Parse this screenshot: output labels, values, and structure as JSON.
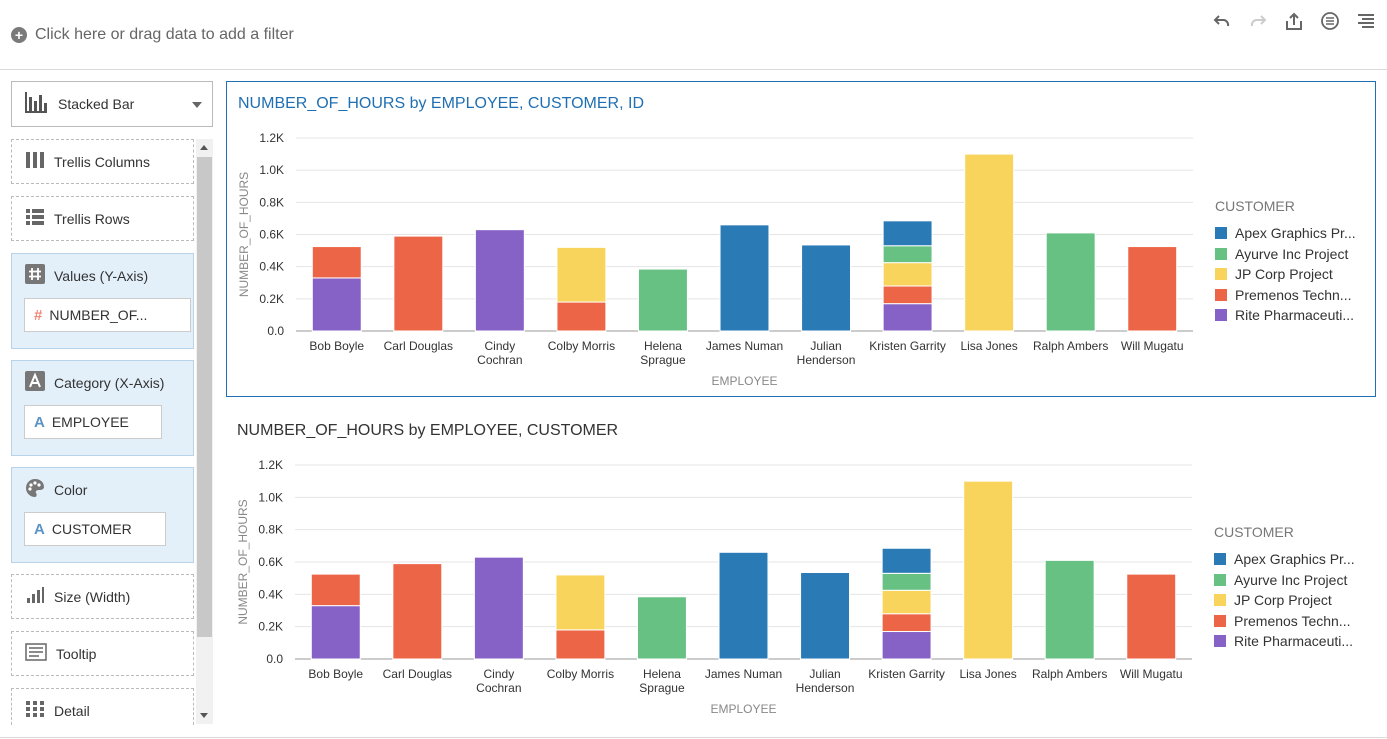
{
  "filter_bar": {
    "add_filter_text": "Click here or drag data to add a filter"
  },
  "toolbar": {
    "icons": [
      "undo-icon",
      "redo-icon",
      "share-icon",
      "properties-icon",
      "menu-icon"
    ]
  },
  "panel": {
    "viz_type": "Stacked Bar",
    "wells": {
      "trellis_columns": "Trellis Columns",
      "trellis_rows": "Trellis Rows",
      "values": {
        "label": "Values (Y-Axis)",
        "item": "NUMBER_OF..."
      },
      "category": {
        "label": "Category (X-Axis)",
        "item": "EMPLOYEE"
      },
      "color": {
        "label": "Color",
        "item": "CUSTOMER"
      },
      "size": "Size (Width)",
      "tooltip": "Tooltip",
      "detail": "Detail"
    }
  },
  "colors": {
    "Apex Graphics Pr...": "#2a7ab5",
    "Ayurve Inc Project": "#66c183",
    "JP Corp Project": "#f9d45c",
    "Premenos Techn...": "#ed6547",
    "Rite Pharmaceuti...": "#8661c6"
  },
  "chart_data": [
    {
      "type": "bar",
      "stacked": true,
      "title": "NUMBER_OF_HOURS by EMPLOYEE, CUSTOMER, ID",
      "xlabel": "EMPLOYEE",
      "ylabel": "NUMBER_OF_HOURS",
      "ylim": [
        0,
        1200
      ],
      "yticks": [
        "0.0",
        "0.2K",
        "0.4K",
        "0.6K",
        "0.8K",
        "1.0K",
        "1.2K"
      ],
      "grid": true,
      "legend_position": "right",
      "legend_title": "CUSTOMER",
      "categories": [
        "Bob Boyle",
        "Carl Douglas",
        "Cindy Cochran",
        "Colby Morris",
        "Helena Sprague",
        "James Numan",
        "Julian Henderson",
        "Kristen Garrity",
        "Lisa Jones",
        "Ralph Ambers",
        "Will Mugatu"
      ],
      "category_lines": [
        [
          "Bob Boyle"
        ],
        [
          "Carl Douglas"
        ],
        [
          "Cindy",
          "Cochran"
        ],
        [
          "Colby Morris"
        ],
        [
          "Helena",
          "Sprague"
        ],
        [
          "James Numan"
        ],
        [
          "Julian",
          "Henderson"
        ],
        [
          "Kristen Garrity"
        ],
        [
          "Lisa Jones"
        ],
        [
          "Ralph Ambers"
        ],
        [
          "Will Mugatu"
        ]
      ],
      "series": [
        {
          "name": "Rite Pharmaceuti...",
          "values": [
            330,
            0,
            630,
            0,
            0,
            0,
            0,
            170,
            0,
            0,
            0
          ]
        },
        {
          "name": "Premenos Techn...",
          "values": [
            195,
            590,
            0,
            180,
            0,
            0,
            0,
            110,
            0,
            0,
            525
          ]
        },
        {
          "name": "JP Corp Project",
          "values": [
            0,
            0,
            0,
            340,
            0,
            0,
            0,
            145,
            1100,
            0,
            0
          ]
        },
        {
          "name": "Ayurve Inc Project",
          "values": [
            0,
            0,
            0,
            0,
            385,
            0,
            0,
            105,
            0,
            610,
            0
          ]
        },
        {
          "name": "Apex Graphics Pr...",
          "values": [
            0,
            0,
            0,
            0,
            0,
            660,
            535,
            155,
            0,
            0,
            0
          ]
        }
      ]
    },
    {
      "type": "bar",
      "stacked": true,
      "title": "NUMBER_OF_HOURS by EMPLOYEE, CUSTOMER",
      "xlabel": "EMPLOYEE",
      "ylabel": "NUMBER_OF_HOURS",
      "ylim": [
        0,
        1200
      ],
      "yticks": [
        "0.0",
        "0.2K",
        "0.4K",
        "0.6K",
        "0.8K",
        "1.0K",
        "1.2K"
      ],
      "grid": true,
      "legend_position": "right",
      "legend_title": "CUSTOMER",
      "categories": [
        "Bob Boyle",
        "Carl Douglas",
        "Cindy Cochran",
        "Colby Morris",
        "Helena Sprague",
        "James Numan",
        "Julian Henderson",
        "Kristen Garrity",
        "Lisa Jones",
        "Ralph Ambers",
        "Will Mugatu"
      ],
      "category_lines": [
        [
          "Bob Boyle"
        ],
        [
          "Carl Douglas"
        ],
        [
          "Cindy",
          "Cochran"
        ],
        [
          "Colby Morris"
        ],
        [
          "Helena",
          "Sprague"
        ],
        [
          "James Numan"
        ],
        [
          "Julian",
          "Henderson"
        ],
        [
          "Kristen Garrity"
        ],
        [
          "Lisa Jones"
        ],
        [
          "Ralph Ambers"
        ],
        [
          "Will Mugatu"
        ]
      ],
      "series": [
        {
          "name": "Rite Pharmaceuti...",
          "values": [
            330,
            0,
            630,
            0,
            0,
            0,
            0,
            170,
            0,
            0,
            0
          ]
        },
        {
          "name": "Premenos Techn...",
          "values": [
            195,
            590,
            0,
            180,
            0,
            0,
            0,
            110,
            0,
            0,
            525
          ]
        },
        {
          "name": "JP Corp Project",
          "values": [
            0,
            0,
            0,
            340,
            0,
            0,
            0,
            145,
            1100,
            0,
            0
          ]
        },
        {
          "name": "Ayurve Inc Project",
          "values": [
            0,
            0,
            0,
            0,
            385,
            0,
            0,
            105,
            0,
            610,
            0
          ]
        },
        {
          "name": "Apex Graphics Pr...",
          "values": [
            0,
            0,
            0,
            0,
            0,
            660,
            535,
            155,
            0,
            0,
            0
          ]
        }
      ]
    }
  ]
}
